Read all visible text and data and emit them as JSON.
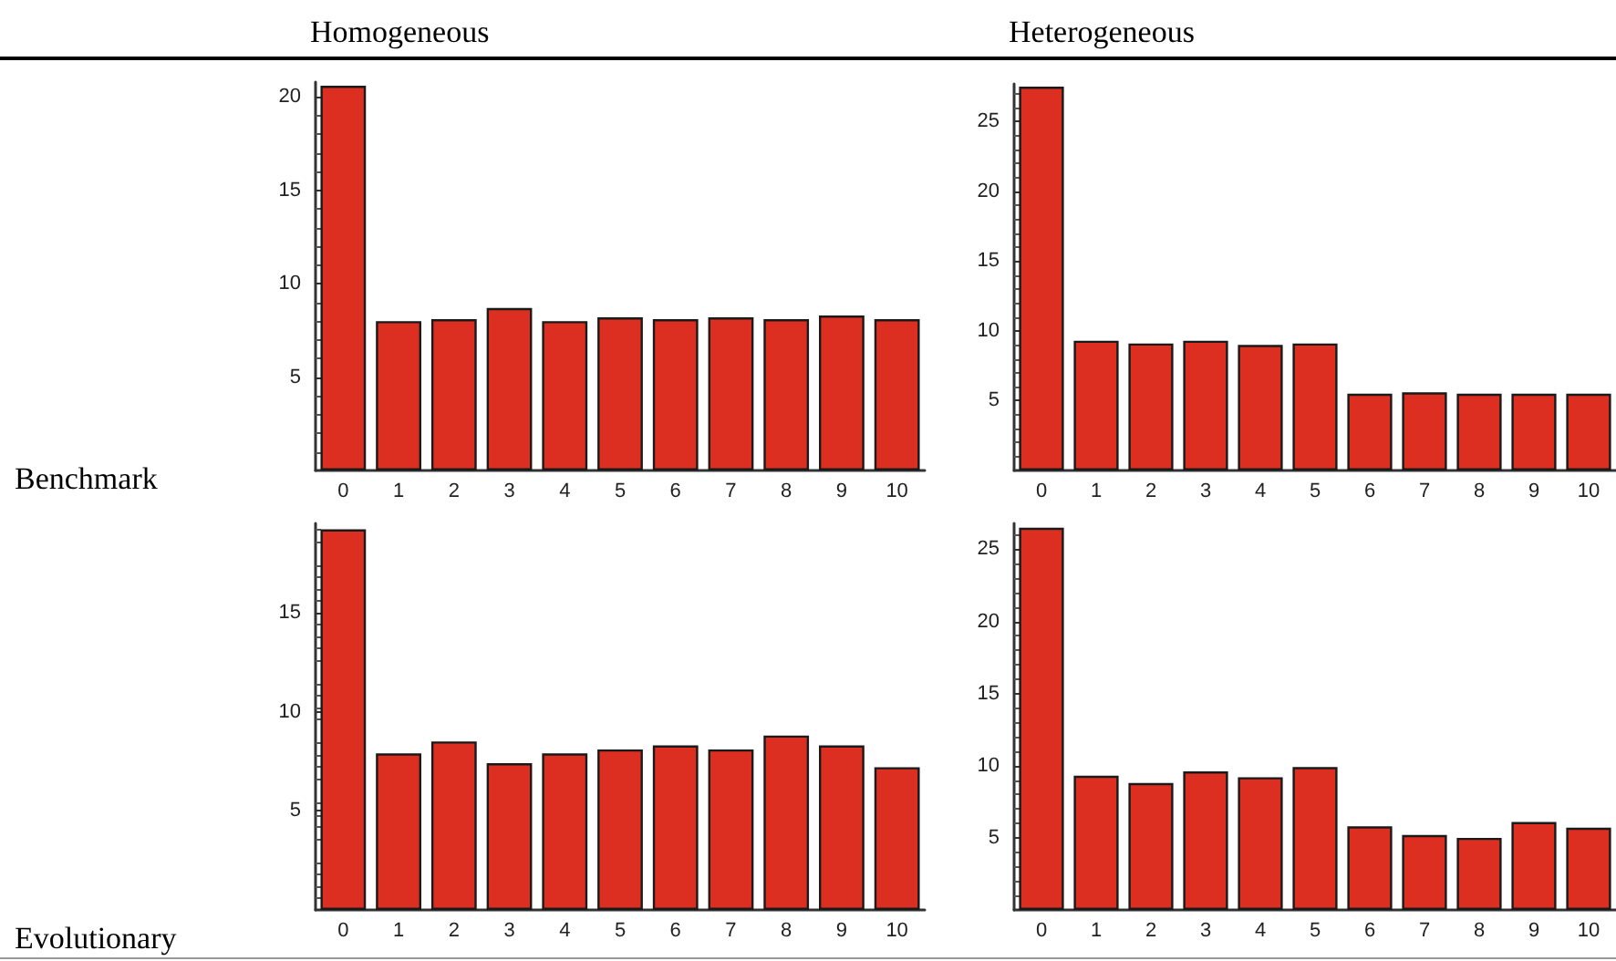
{
  "chart_data": [
    {
      "type": "bar",
      "title": "Homogeneous",
      "annotations": [
        "Benchmark"
      ],
      "categories": [
        "0",
        "1",
        "2",
        "3",
        "4",
        "5",
        "6",
        "7",
        "8",
        "9",
        "10"
      ],
      "color": "#dc2f22",
      "values": [
        20.6,
        8.0,
        8.1,
        8.7,
        8.0,
        8.2,
        8.1,
        8.2,
        8.1,
        8.3,
        8.1
      ],
      "ylim": [
        0,
        20.8
      ],
      "yticks": [
        5,
        10,
        15,
        20
      ],
      "grid": false
    },
    {
      "type": "bar",
      "title": "Heterogeneous",
      "categories": [
        "0",
        "1",
        "2",
        "3",
        "4",
        "5",
        "6",
        "7",
        "8",
        "9",
        "10"
      ],
      "color": "#dc2f22",
      "values": [
        27.5,
        9.3,
        9.1,
        9.3,
        9.0,
        9.1,
        5.5,
        5.6,
        5.5,
        5.5,
        5.5
      ],
      "ylim": [
        0,
        27.7
      ],
      "yticks": [
        5,
        10,
        15,
        20,
        25
      ],
      "grid": false
    },
    {
      "type": "bar",
      "annotations": [
        "Evolutionary"
      ],
      "categories": [
        "0",
        "1",
        "2",
        "3",
        "4",
        "5",
        "6",
        "7",
        "8",
        "9",
        "10"
      ],
      "color": "#dc2f22",
      "values": [
        19.2,
        7.9,
        8.5,
        7.4,
        7.9,
        8.1,
        8.3,
        8.1,
        8.8,
        8.3,
        7.2
      ],
      "ylim": [
        0,
        19.5
      ],
      "yticks": [
        5,
        10,
        15
      ],
      "grid": false
    },
    {
      "type": "bar",
      "categories": [
        "0",
        "1",
        "2",
        "3",
        "4",
        "5",
        "6",
        "7",
        "8",
        "9",
        "10"
      ],
      "color": "#dc2f22",
      "values": [
        26.5,
        9.3,
        8.8,
        9.6,
        9.2,
        9.9,
        5.8,
        5.2,
        5.0,
        6.1,
        5.7
      ],
      "ylim": [
        0,
        26.8
      ],
      "yticks": [
        5,
        10,
        15,
        20,
        25
      ],
      "grid": false
    }
  ]
}
